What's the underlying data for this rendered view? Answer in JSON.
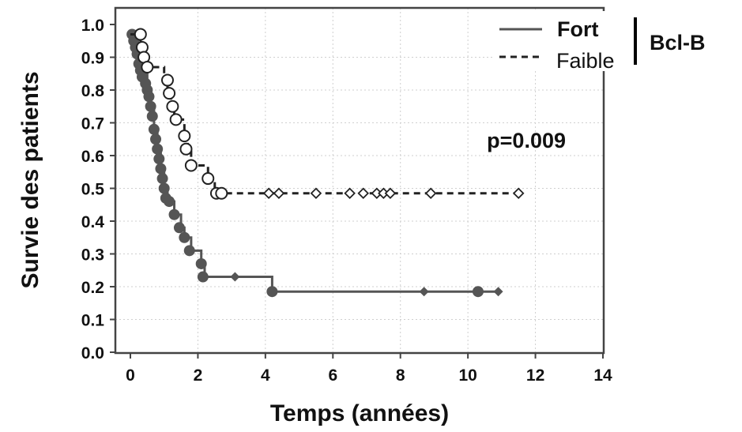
{
  "chart_data": {
    "type": "line",
    "subtype": "kaplan-meier",
    "title": "",
    "xlabel": "Temps (années)",
    "ylabel": "Survie des patients",
    "xlim": [
      0,
      14
    ],
    "ylim": [
      0,
      1
    ],
    "x_ticks": [
      "0",
      "2",
      "4",
      "6",
      "8",
      "10",
      "12",
      "14"
    ],
    "y_ticks": [
      "0.0",
      "0.1",
      "0.2",
      "0.3",
      "0.4",
      "0.5",
      "0.6",
      "0.7",
      "0.8",
      "0.9",
      "1.0"
    ],
    "grid": true,
    "legend": {
      "placement": "top-right",
      "group_label": "Bcl-B",
      "entries": [
        "Fort",
        "Faible"
      ]
    },
    "annotation": "p=0.009",
    "series": [
      {
        "name": "Fort",
        "style": "solid",
        "color": "#555555",
        "steps": [
          [
            0,
            0.97
          ],
          [
            0.1,
            0.95
          ],
          [
            0.2,
            0.93
          ],
          [
            0.3,
            0.88
          ],
          [
            0.4,
            0.85
          ],
          [
            0.5,
            0.8
          ],
          [
            0.6,
            0.75
          ],
          [
            0.7,
            0.68
          ],
          [
            0.8,
            0.62
          ],
          [
            0.9,
            0.56
          ],
          [
            1.0,
            0.5
          ],
          [
            1.1,
            0.46
          ],
          [
            1.3,
            0.42
          ],
          [
            1.5,
            0.38
          ],
          [
            1.6,
            0.35
          ],
          [
            1.8,
            0.31
          ],
          [
            2.1,
            0.27
          ],
          [
            2.2,
            0.23
          ],
          [
            4.2,
            0.185
          ],
          [
            11.0,
            0.185
          ]
        ],
        "events": [
          [
            0.05,
            0.97
          ],
          [
            0.1,
            0.95
          ],
          [
            0.15,
            0.93
          ],
          [
            0.2,
            0.91
          ],
          [
            0.25,
            0.88
          ],
          [
            0.3,
            0.86
          ],
          [
            0.35,
            0.84
          ],
          [
            0.45,
            0.82
          ],
          [
            0.5,
            0.8
          ],
          [
            0.55,
            0.78
          ],
          [
            0.6,
            0.75
          ],
          [
            0.65,
            0.72
          ],
          [
            0.7,
            0.68
          ],
          [
            0.75,
            0.65
          ],
          [
            0.8,
            0.62
          ],
          [
            0.85,
            0.59
          ],
          [
            0.9,
            0.56
          ],
          [
            0.95,
            0.53
          ],
          [
            1.0,
            0.5
          ],
          [
            1.05,
            0.47
          ],
          [
            1.15,
            0.46
          ],
          [
            1.3,
            0.42
          ],
          [
            1.45,
            0.38
          ],
          [
            1.6,
            0.35
          ],
          [
            1.75,
            0.31
          ],
          [
            2.1,
            0.27
          ],
          [
            2.15,
            0.23
          ],
          [
            4.2,
            0.185
          ],
          [
            10.3,
            0.185
          ]
        ],
        "censored": [
          [
            3.1,
            0.23
          ],
          [
            8.7,
            0.185
          ],
          [
            10.9,
            0.185
          ]
        ]
      },
      {
        "name": "Faible",
        "style": "dashed",
        "color": "#222222",
        "steps": [
          [
            0,
            0.97
          ],
          [
            0.3,
            0.93
          ],
          [
            0.4,
            0.9
          ],
          [
            0.5,
            0.87
          ],
          [
            1.0,
            0.83
          ],
          [
            1.1,
            0.79
          ],
          [
            1.2,
            0.75
          ],
          [
            1.3,
            0.71
          ],
          [
            1.6,
            0.66
          ],
          [
            1.7,
            0.62
          ],
          [
            1.8,
            0.57
          ],
          [
            2.3,
            0.53
          ],
          [
            2.5,
            0.5
          ],
          [
            2.6,
            0.485
          ],
          [
            11.5,
            0.485
          ]
        ],
        "events": [
          [
            0.3,
            0.97
          ],
          [
            0.35,
            0.93
          ],
          [
            0.4,
            0.9
          ],
          [
            0.5,
            0.87
          ],
          [
            1.1,
            0.83
          ],
          [
            1.15,
            0.79
          ],
          [
            1.25,
            0.75
          ],
          [
            1.35,
            0.71
          ],
          [
            1.6,
            0.66
          ],
          [
            1.65,
            0.62
          ],
          [
            1.8,
            0.57
          ],
          [
            2.3,
            0.53
          ],
          [
            2.55,
            0.485
          ],
          [
            2.7,
            0.485
          ]
        ],
        "censored": [
          [
            4.1,
            0.485
          ],
          [
            4.4,
            0.485
          ],
          [
            5.5,
            0.485
          ],
          [
            6.5,
            0.485
          ],
          [
            6.9,
            0.485
          ],
          [
            7.3,
            0.485
          ],
          [
            7.5,
            0.485
          ],
          [
            7.7,
            0.485
          ],
          [
            8.9,
            0.485
          ],
          [
            11.5,
            0.485
          ]
        ]
      }
    ]
  }
}
